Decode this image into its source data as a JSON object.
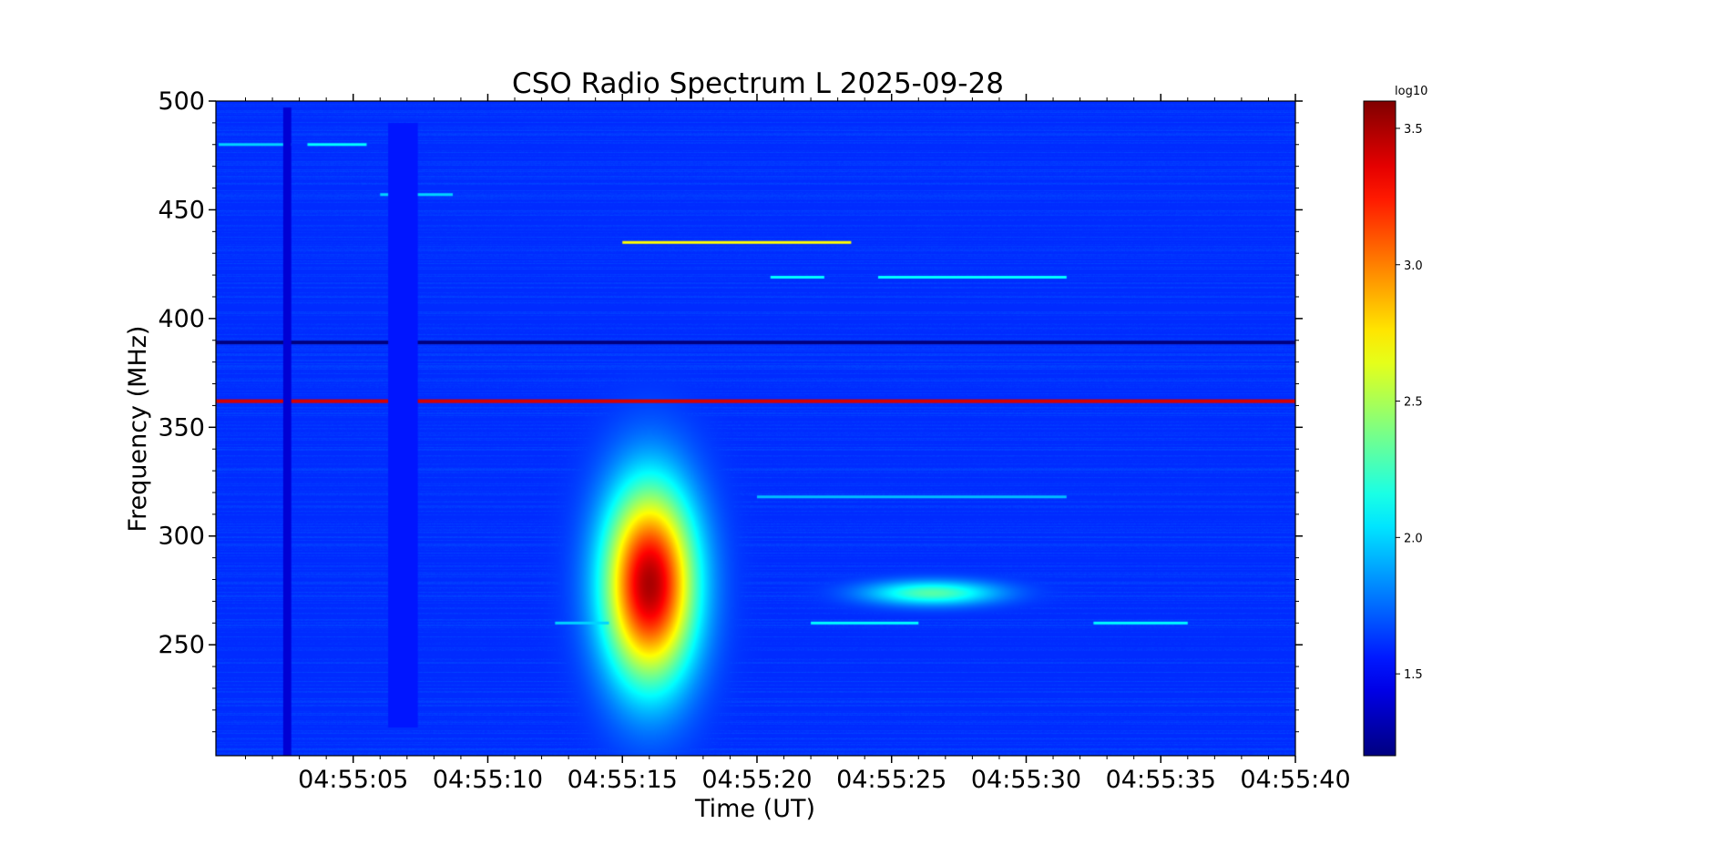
{
  "chart_data": {
    "type": "heatmap",
    "title": "CSO Radio Spectrum L 2025-09-28",
    "xlabel": "Time (UT)",
    "ylabel": "Frequency (MHz)",
    "x_range": [
      "04:54:59.9",
      "04:55:40"
    ],
    "ylim": [
      199,
      500
    ],
    "x_ticks": [
      "04:55:05",
      "04:55:10",
      "04:55:15",
      "04:55:20",
      "04:55:25",
      "04:55:30",
      "04:55:35",
      "04:55:40"
    ],
    "y_ticks": [
      250,
      300,
      350,
      400,
      450,
      500
    ],
    "colorbar": {
      "label": "log10",
      "range": [
        1.2,
        3.6
      ],
      "ticks": [
        "1.5",
        "2.0",
        "2.5",
        "3.0",
        "3.5"
      ],
      "colormap": "jet"
    },
    "background_level": 1.6,
    "features": [
      {
        "kind": "burst",
        "t_start": "04:55:13.5",
        "t_end": "04:55:19",
        "f_low": 235,
        "f_high": 370,
        "peak_time": "04:55:16",
        "peak_freq": 278,
        "peak_value": 3.5
      },
      {
        "kind": "burst",
        "t_start": "04:55:20",
        "t_end": "04:55:28",
        "f_low": 265,
        "f_high": 282,
        "peak_time": "04:55:26.5",
        "peak_freq": 274,
        "peak_value": 2.3
      },
      {
        "kind": "rfi_line",
        "freq": 362,
        "value": 3.4
      },
      {
        "kind": "rfi_line",
        "freq": 389,
        "value": 1.2
      },
      {
        "kind": "rfi_segment",
        "freq": 435,
        "t_start": "04:55:15",
        "t_end": "04:55:23.5",
        "value": 2.7
      },
      {
        "kind": "rfi_segment",
        "freq": 419,
        "t_start": "04:55:20.5",
        "t_end": "04:55:22.5",
        "value": 2.1
      },
      {
        "kind": "rfi_segment",
        "freq": 419,
        "t_start": "04:55:24.5",
        "t_end": "04:55:31.5",
        "value": 2.1
      },
      {
        "kind": "rfi_segment",
        "freq": 480,
        "t_start": "04:55:00",
        "t_end": "04:55:02.7",
        "value": 2.0
      },
      {
        "kind": "rfi_segment",
        "freq": 480,
        "t_start": "04:55:03.3",
        "t_end": "04:55:05.5",
        "value": 2.1
      },
      {
        "kind": "rfi_segment",
        "freq": 457,
        "t_start": "04:55:06",
        "t_end": "04:55:08.7",
        "value": 2.0
      },
      {
        "kind": "rfi_segment",
        "freq": 318,
        "t_start": "04:55:20",
        "t_end": "04:55:31.5",
        "value": 1.95
      },
      {
        "kind": "rfi_segment",
        "freq": 260,
        "t_start": "04:55:22",
        "t_end": "04:55:26",
        "value": 2.1
      },
      {
        "kind": "rfi_segment",
        "freq": 260,
        "t_start": "04:55:32.5",
        "t_end": "04:55:36",
        "value": 2.1
      },
      {
        "kind": "rfi_segment",
        "freq": 260,
        "t_start": "04:55:12.5",
        "t_end": "04:55:14.5",
        "value": 2.0
      },
      {
        "kind": "vertical_band",
        "t_start": "04:55:02.4",
        "t_end": "04:55:02.7",
        "f_low": 199,
        "f_high": 497,
        "value": 1.4
      },
      {
        "kind": "vertical_band",
        "t_start": "04:55:06.3",
        "t_end": "04:55:07.4",
        "f_low": 212,
        "f_high": 490,
        "value": 1.55
      }
    ]
  }
}
